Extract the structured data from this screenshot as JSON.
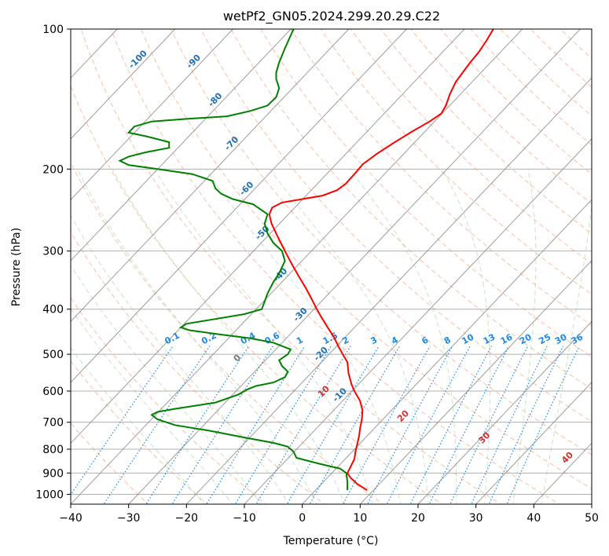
{
  "chart_data": {
    "type": "line",
    "title": "wetPf2_GN05.2024.299.20.29.C22",
    "xlabel": "Temperature (°C)",
    "ylabel": "Pressure (hPa)",
    "xlim": [
      -40,
      50
    ],
    "ylim": [
      1050,
      100
    ],
    "y_scale": "log",
    "grid": true,
    "x_ticks": [
      -40,
      -30,
      -20,
      -10,
      0,
      10,
      20,
      30,
      40,
      50
    ],
    "y_ticks": [
      1000,
      900,
      800,
      700,
      600,
      500,
      400,
      300,
      200,
      100
    ],
    "series": [
      {
        "color": "#ff0000",
        "points": [
          [
            11.2,
            980
          ],
          [
            9.5,
            950
          ],
          [
            8.3,
            920
          ],
          [
            7.8,
            900
          ],
          [
            8.2,
            880
          ],
          [
            8.6,
            860
          ],
          [
            9.0,
            840
          ],
          [
            9.2,
            810
          ],
          [
            9.5,
            780
          ],
          [
            9.8,
            750
          ],
          [
            10.0,
            720
          ],
          [
            10.3,
            690
          ],
          [
            10.4,
            660
          ],
          [
            10.0,
            630
          ],
          [
            9.0,
            600
          ],
          [
            8.5,
            580
          ],
          [
            8.0,
            550
          ],
          [
            7.8,
            520
          ],
          [
            7.0,
            500
          ],
          [
            6.2,
            480
          ],
          [
            5.5,
            460
          ],
          [
            4.5,
            440
          ],
          [
            3.5,
            420
          ],
          [
            2.5,
            400
          ],
          [
            1.6,
            380
          ],
          [
            0.6,
            360
          ],
          [
            -0.6,
            340
          ],
          [
            -1.8,
            320
          ],
          [
            -3.0,
            300
          ],
          [
            -4.2,
            280
          ],
          [
            -5.3,
            262
          ],
          [
            -5.7,
            250
          ],
          [
            -5.2,
            242
          ],
          [
            -3.5,
            236
          ],
          [
            0.0,
            232
          ],
          [
            3.5,
            228
          ],
          [
            6.0,
            222
          ],
          [
            7.5,
            215
          ],
          [
            9.0,
            205
          ],
          [
            10.5,
            195
          ],
          [
            13.0,
            185
          ],
          [
            16.0,
            175
          ],
          [
            19.0,
            166
          ],
          [
            22.0,
            158
          ],
          [
            24.0,
            152
          ],
          [
            24.8,
            146
          ],
          [
            25.5,
            138
          ],
          [
            26.5,
            130
          ],
          [
            27.5,
            125
          ],
          [
            29.0,
            118
          ],
          [
            30.5,
            112
          ],
          [
            31.8,
            106
          ],
          [
            33.0,
            100
          ]
        ]
      },
      {
        "color": "#008000",
        "points": [
          [
            7.8,
            980
          ],
          [
            7.8,
            940
          ],
          [
            7.6,
            900
          ],
          [
            6.5,
            880
          ],
          [
            3.0,
            860
          ],
          [
            -1.0,
            835
          ],
          [
            -1.5,
            810
          ],
          [
            -2.5,
            790
          ],
          [
            -5.0,
            775
          ],
          [
            -10.0,
            755
          ],
          [
            -16.0,
            730
          ],
          [
            -22.0,
            710
          ],
          [
            -25.0,
            690
          ],
          [
            -26.0,
            675
          ],
          [
            -25.0,
            665
          ],
          [
            -22.0,
            655
          ],
          [
            -15.0,
            635
          ],
          [
            -11.0,
            610
          ],
          [
            -9.5,
            595
          ],
          [
            -8.0,
            585
          ],
          [
            -5.0,
            575
          ],
          [
            -3.0,
            560
          ],
          [
            -2.5,
            545
          ],
          [
            -3.5,
            530
          ],
          [
            -4.0,
            515
          ],
          [
            -2.5,
            500
          ],
          [
            -2.0,
            488
          ],
          [
            -5.0,
            472
          ],
          [
            -9.0,
            462
          ],
          [
            -15.0,
            452
          ],
          [
            -19.5,
            444
          ],
          [
            -21.0,
            438
          ],
          [
            -20.0,
            430
          ],
          [
            -15.0,
            420
          ],
          [
            -10.0,
            410
          ],
          [
            -7.0,
            400
          ],
          [
            -6.5,
            385
          ],
          [
            -6.0,
            370
          ],
          [
            -5.0,
            350
          ],
          [
            -4.0,
            335
          ],
          [
            -3.0,
            315
          ],
          [
            -3.5,
            300
          ],
          [
            -5.0,
            288
          ],
          [
            -6.0,
            275
          ],
          [
            -6.5,
            262
          ],
          [
            -6.0,
            250
          ],
          [
            -8.5,
            238
          ],
          [
            -12.0,
            232
          ],
          [
            -14.0,
            226
          ],
          [
            -15.0,
            220
          ],
          [
            -15.5,
            212
          ],
          [
            -19.0,
            205
          ],
          [
            -25.0,
            200
          ],
          [
            -30.0,
            196
          ],
          [
            -31.5,
            192
          ],
          [
            -30.0,
            188
          ],
          [
            -27.0,
            184
          ],
          [
            -23.0,
            180
          ],
          [
            -23.0,
            175
          ],
          [
            -27.0,
            170
          ],
          [
            -30.0,
            167
          ],
          [
            -29.0,
            162
          ],
          [
            -26.0,
            158
          ],
          [
            -20.0,
            156
          ],
          [
            -13.0,
            154
          ],
          [
            -9.0,
            150
          ],
          [
            -6.0,
            146
          ],
          [
            -4.5,
            140
          ],
          [
            -4.0,
            134
          ],
          [
            -4.5,
            128
          ],
          [
            -4.5,
            124
          ],
          [
            -4.0,
            118
          ],
          [
            -3.0,
            110
          ],
          [
            -1.5,
            100
          ]
        ]
      }
    ],
    "isotherm_labels": [
      "-100",
      "-90",
      "-80",
      "-70",
      "-60",
      "-50",
      "-40",
      "-30",
      "-20",
      "-10"
    ],
    "mixing_ratio_labels": [
      "0.1",
      "0.2",
      "0.4",
      "0.6",
      "1",
      "1.5",
      "2",
      "3",
      "4",
      "6",
      "8",
      "10",
      "13",
      "16",
      "20",
      "25",
      "30",
      "36"
    ],
    "adiabat_labels": [
      "0",
      "10",
      "20",
      "30",
      "40"
    ]
  }
}
